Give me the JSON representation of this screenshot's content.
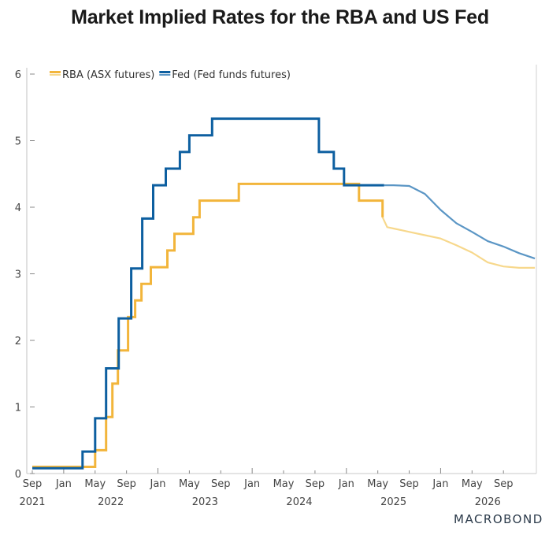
{
  "chart_data": {
    "type": "line",
    "title": "Market Implied Rates for the RBA and US Fed",
    "xlabel": "",
    "ylabel": "",
    "ylim": [
      0,
      6
    ],
    "yticks": [
      "0",
      "1",
      "2",
      "3",
      "4",
      "5",
      "6"
    ],
    "x_start": "2021-09",
    "x_unit": "months since Sep 2021",
    "xlim": [
      0,
      64
    ],
    "month_ticks": [
      {
        "m": 0,
        "label": "Sep"
      },
      {
        "m": 4,
        "label": "Jan"
      },
      {
        "m": 8,
        "label": "May"
      },
      {
        "m": 12,
        "label": "Sep"
      },
      {
        "m": 16,
        "label": "Jan"
      },
      {
        "m": 20,
        "label": "May"
      },
      {
        "m": 24,
        "label": "Sep"
      },
      {
        "m": 28,
        "label": "Jan"
      },
      {
        "m": 32,
        "label": "May"
      },
      {
        "m": 36,
        "label": "Sep"
      },
      {
        "m": 40,
        "label": "Jan"
      },
      {
        "m": 44,
        "label": "May"
      },
      {
        "m": 48,
        "label": "Sep"
      },
      {
        "m": 52,
        "label": "Jan"
      },
      {
        "m": 56,
        "label": "May"
      },
      {
        "m": 60,
        "label": "Sep"
      }
    ],
    "year_labels": [
      {
        "m": 0,
        "label": "2021"
      },
      {
        "m": 10,
        "label": "2022"
      },
      {
        "m": 22,
        "label": "2023"
      },
      {
        "m": 34,
        "label": "2024"
      },
      {
        "m": 46,
        "label": "2025"
      },
      {
        "m": 58,
        "label": "2026"
      }
    ],
    "legend_position": "top-left",
    "grid": false,
    "series": [
      {
        "name": "RBA (ASX futures)",
        "color": "#f2b53b",
        "forecast_color": "#f7d88c",
        "step": true,
        "actual": [
          [
            0,
            0.1
          ],
          [
            8.0,
            0.1
          ],
          [
            8.0,
            0.35
          ],
          [
            9.4,
            0.35
          ],
          [
            9.4,
            0.85
          ],
          [
            10.2,
            0.85
          ],
          [
            10.2,
            1.35
          ],
          [
            10.9,
            1.35
          ],
          [
            10.9,
            1.85
          ],
          [
            12.2,
            1.85
          ],
          [
            12.2,
            2.35
          ],
          [
            13.1,
            2.35
          ],
          [
            13.1,
            2.6
          ],
          [
            13.9,
            2.6
          ],
          [
            13.9,
            2.85
          ],
          [
            15.1,
            2.85
          ],
          [
            15.1,
            3.1
          ],
          [
            17.2,
            3.1
          ],
          [
            17.2,
            3.35
          ],
          [
            18.1,
            3.35
          ],
          [
            18.1,
            3.6
          ],
          [
            20.5,
            3.6
          ],
          [
            20.5,
            3.85
          ],
          [
            21.3,
            3.85
          ],
          [
            21.3,
            4.1
          ],
          [
            26.3,
            4.1
          ],
          [
            26.3,
            4.35
          ],
          [
            41.6,
            4.35
          ],
          [
            41.6,
            4.1
          ],
          [
            44.6,
            4.1
          ],
          [
            44.6,
            3.85
          ]
        ],
        "forecast": [
          [
            44.6,
            3.85
          ],
          [
            45.2,
            3.7
          ],
          [
            46,
            3.68
          ],
          [
            48,
            3.63
          ],
          [
            50,
            3.58
          ],
          [
            52,
            3.53
          ],
          [
            54,
            3.43
          ],
          [
            56,
            3.32
          ],
          [
            58,
            3.17
          ],
          [
            60,
            3.11
          ],
          [
            62,
            3.09
          ],
          [
            64,
            3.09
          ]
        ]
      },
      {
        "name": "Fed (Fed funds futures)",
        "color": "#0d5fa0",
        "forecast_color": "#5b96c5",
        "step": true,
        "actual": [
          [
            0,
            0.08
          ],
          [
            6.4,
            0.08
          ],
          [
            6.4,
            0.33
          ],
          [
            8.0,
            0.33
          ],
          [
            8.0,
            0.83
          ],
          [
            9.4,
            0.83
          ],
          [
            9.4,
            1.58
          ],
          [
            11.0,
            1.58
          ],
          [
            11.0,
            2.33
          ],
          [
            12.6,
            2.33
          ],
          [
            12.6,
            3.08
          ],
          [
            14.0,
            3.08
          ],
          [
            14.0,
            3.83
          ],
          [
            15.4,
            3.83
          ],
          [
            15.4,
            4.33
          ],
          [
            17.0,
            4.33
          ],
          [
            17.0,
            4.58
          ],
          [
            18.8,
            4.58
          ],
          [
            18.8,
            4.83
          ],
          [
            20.0,
            4.83
          ],
          [
            20.0,
            5.08
          ],
          [
            22.9,
            5.08
          ],
          [
            22.9,
            5.33
          ],
          [
            36.5,
            5.33
          ],
          [
            36.5,
            4.83
          ],
          [
            38.4,
            4.83
          ],
          [
            38.4,
            4.58
          ],
          [
            39.7,
            4.58
          ],
          [
            39.7,
            4.33
          ],
          [
            44.8,
            4.33
          ]
        ],
        "forecast": [
          [
            44.8,
            4.33
          ],
          [
            46,
            4.33
          ],
          [
            48,
            4.32
          ],
          [
            50,
            4.2
          ],
          [
            52,
            3.96
          ],
          [
            54,
            3.76
          ],
          [
            56,
            3.63
          ],
          [
            58,
            3.49
          ],
          [
            60,
            3.41
          ],
          [
            62,
            3.31
          ],
          [
            64,
            3.23
          ]
        ]
      }
    ]
  },
  "brand": "MACROBOND"
}
